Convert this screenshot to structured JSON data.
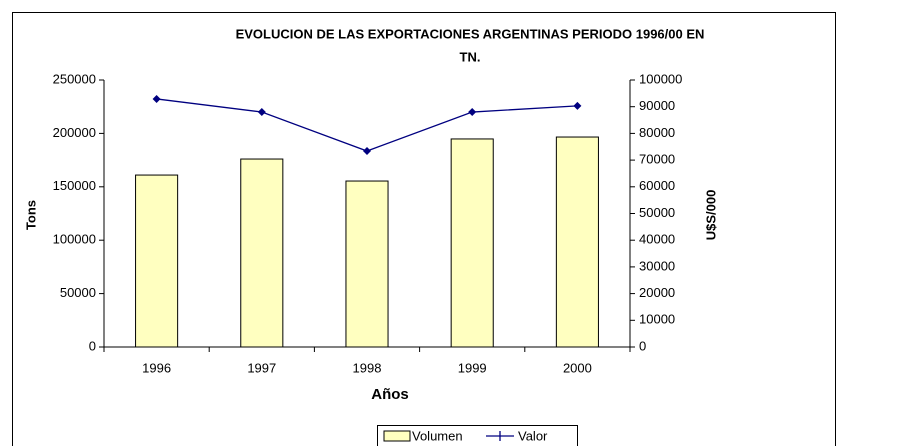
{
  "chart_data": {
    "type": "bar-line",
    "title": [
      "EVOLUCION DE LAS EXPORTACIONES ARGENTINAS PERIODO 1996/00 EN",
      "TN."
    ],
    "x_label": "Años",
    "y_label": "Tons",
    "y2_label": "U$S/000",
    "categories": [
      "1996",
      "1997",
      "1998",
      "1999",
      "2000"
    ],
    "series": [
      {
        "name": "Volumen",
        "type": "bar",
        "color": "#ffffc0",
        "values": [
          161000,
          176000,
          155400,
          194800,
          196600
        ]
      },
      {
        "name": "Valor",
        "type": "line",
        "axis": "y2",
        "color": "#000080",
        "values": [
          92900,
          88000,
          73400,
          88000,
          90300
        ]
      }
    ],
    "ylim": [
      0,
      250000
    ],
    "yticks": [
      0,
      50000,
      100000,
      150000,
      200000,
      250000
    ],
    "y2lim": [
      0,
      100000
    ],
    "y2ticks": [
      0,
      10000,
      20000,
      30000,
      40000,
      50000,
      60000,
      70000,
      80000,
      90000,
      100000
    ],
    "legend": "bottom"
  }
}
